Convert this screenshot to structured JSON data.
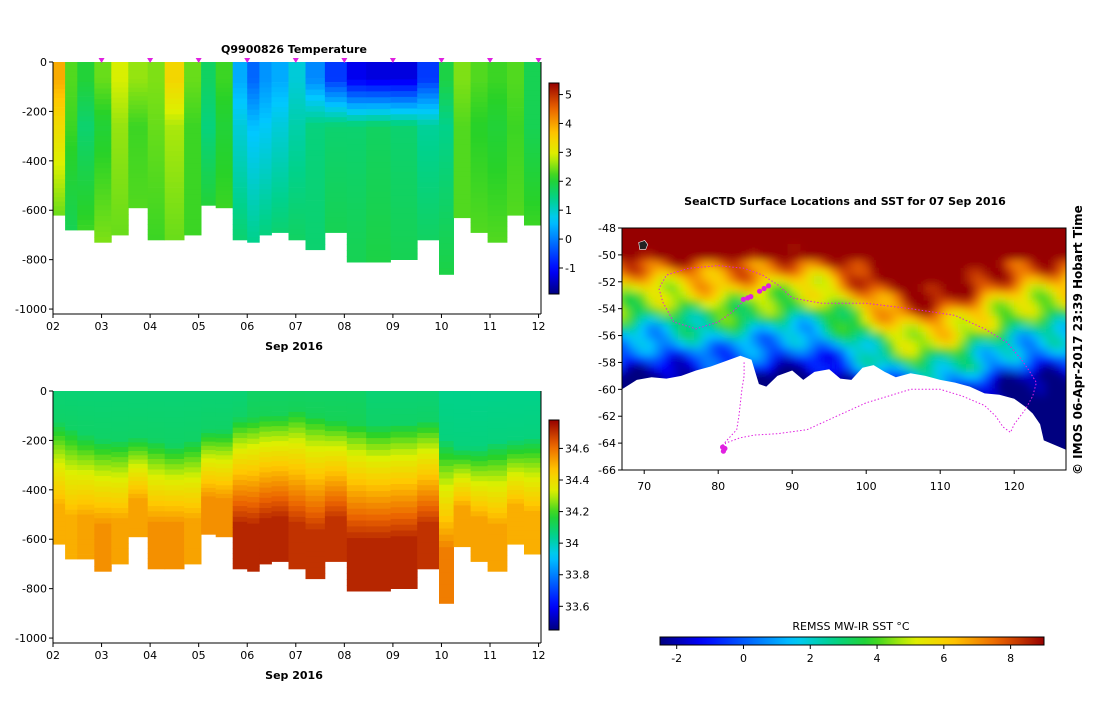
{
  "chart_data": [
    {
      "type": "heatmap",
      "title": "Q9900826  Temperature",
      "xlabel": "Sep 2016",
      "x_tick_labels": [
        "02",
        "03",
        "04",
        "05",
        "06",
        "07",
        "08",
        "09",
        "10",
        "11",
        "12"
      ],
      "x_range_days": [
        2.0,
        12.05
      ],
      "ylim": [
        -1020,
        0
      ],
      "y_ticks": [
        0,
        -200,
        -400,
        -600,
        -800,
        -1000
      ],
      "colorbar": {
        "min": -1.9,
        "max": 5.4,
        "ticks": [
          -1,
          0,
          1,
          2,
          3,
          4,
          5
        ]
      },
      "profile_marker_days": [
        3.0,
        4.0,
        5.0,
        6.0,
        7.0,
        8.0,
        9.0,
        10.0,
        11.0,
        12.0
      ],
      "profiles": [
        {
          "t": 2.0,
          "w": 0.25,
          "depth": 620,
          "surf": 3.9,
          "mix": 3.3,
          "deep": 2.4
        },
        {
          "t": 2.25,
          "w": 0.25,
          "depth": 680,
          "surf": 2.3,
          "mix": 2.2,
          "deep": 1.8
        },
        {
          "t": 2.5,
          "w": 0.35,
          "depth": 680,
          "surf": 2.0,
          "mix": 1.6,
          "deep": 2.2
        },
        {
          "t": 2.85,
          "w": 0.35,
          "depth": 730,
          "surf": 2.4,
          "mix": 2.0,
          "deep": 2.5
        },
        {
          "t": 3.2,
          "w": 0.35,
          "depth": 700,
          "surf": 2.9,
          "mix": 2.6,
          "deep": 2.4
        },
        {
          "t": 3.55,
          "w": 0.4,
          "depth": 590,
          "surf": 2.6,
          "mix": 2.2,
          "deep": 2.3
        },
        {
          "t": 3.95,
          "w": 0.35,
          "depth": 720,
          "surf": 2.5,
          "mix": 2.4,
          "deep": 2.2
        },
        {
          "t": 4.3,
          "w": 0.4,
          "depth": 720,
          "surf": 3.4,
          "mix": 2.7,
          "deep": 2.4
        },
        {
          "t": 4.7,
          "w": 0.35,
          "depth": 700,
          "surf": 2.4,
          "mix": 2.2,
          "deep": 2.2
        },
        {
          "t": 5.05,
          "w": 0.3,
          "depth": 580,
          "surf": 1.7,
          "mix": 1.5,
          "deep": 2.0
        },
        {
          "t": 5.35,
          "w": 0.35,
          "depth": 590,
          "surf": 2.2,
          "mix": 2.0,
          "deep": 2.2
        },
        {
          "t": 5.7,
          "w": 0.3,
          "depth": 720,
          "surf": 0.4,
          "mix": 0.9,
          "deep": 1.6
        },
        {
          "t": 6.0,
          "w": 0.25,
          "depth": 730,
          "surf": -0.2,
          "mix": 0.6,
          "deep": 1.4
        },
        {
          "t": 6.25,
          "w": 0.25,
          "depth": 700,
          "surf": 0.2,
          "mix": 0.7,
          "deep": 1.5
        },
        {
          "t": 6.5,
          "w": 0.35,
          "depth": 690,
          "surf": 0.4,
          "mix": 0.9,
          "deep": 1.6
        },
        {
          "t": 6.85,
          "w": 0.35,
          "depth": 720,
          "surf": 0.9,
          "mix": 1.2,
          "deep": 1.7
        },
        {
          "t": 7.2,
          "w": 0.4,
          "depth": 760,
          "surf": 0.1,
          "mix": 1.5,
          "deep": 1.6
        },
        {
          "t": 7.6,
          "w": 0.45,
          "depth": 690,
          "surf": -0.6,
          "mix": 1.6,
          "deep": 1.8
        },
        {
          "t": 8.05,
          "w": 0.4,
          "depth": 810,
          "surf": -1.2,
          "mix": 1.6,
          "deep": 1.8
        },
        {
          "t": 8.45,
          "w": 0.5,
          "depth": 810,
          "surf": -1.3,
          "mix": 1.7,
          "deep": 1.9
        },
        {
          "t": 8.95,
          "w": 0.55,
          "depth": 800,
          "surf": -1.3,
          "mix": 1.6,
          "deep": 1.8
        },
        {
          "t": 9.5,
          "w": 0.45,
          "depth": 720,
          "surf": -0.6,
          "mix": 1.3,
          "deep": 1.7
        },
        {
          "t": 9.95,
          "w": 0.3,
          "depth": 860,
          "surf": 1.9,
          "mix": 1.4,
          "deep": 1.9
        },
        {
          "t": 10.25,
          "w": 0.35,
          "depth": 630,
          "surf": 2.5,
          "mix": 2.3,
          "deep": 2.3
        },
        {
          "t": 10.6,
          "w": 0.35,
          "depth": 690,
          "surf": 2.3,
          "mix": 2.1,
          "deep": 2.3
        },
        {
          "t": 10.95,
          "w": 0.4,
          "depth": 730,
          "surf": 2.2,
          "mix": 2.0,
          "deep": 2.3
        },
        {
          "t": 11.35,
          "w": 0.35,
          "depth": 620,
          "surf": 2.3,
          "mix": 2.2,
          "deep": 2.3
        },
        {
          "t": 11.7,
          "w": 0.35,
          "depth": 660,
          "surf": 1.8,
          "mix": 1.8,
          "deep": 2.2
        }
      ]
    },
    {
      "type": "heatmap",
      "title": "",
      "xlabel": "Sep 2016",
      "x_tick_labels": [
        "02",
        "03",
        "04",
        "05",
        "06",
        "07",
        "08",
        "09",
        "10",
        "11",
        "12"
      ],
      "x_range_days": [
        2.0,
        12.05
      ],
      "ylim": [
        -1020,
        0
      ],
      "y_ticks": [
        0,
        -200,
        -400,
        -600,
        -800,
        -1000
      ],
      "colorbar": {
        "min": 33.45,
        "max": 34.78,
        "ticks": [
          33.6,
          33.8,
          34,
          34.2,
          34.4,
          34.6
        ]
      },
      "profiles": [
        {
          "t": 2.0,
          "w": 0.25,
          "depth": 620,
          "surf": 34.08,
          "deep": 34.5,
          "halo": 130
        },
        {
          "t": 2.25,
          "w": 0.25,
          "depth": 680,
          "surf": 34.08,
          "deep": 34.5,
          "halo": 150
        },
        {
          "t": 2.5,
          "w": 0.35,
          "depth": 680,
          "surf": 34.08,
          "deep": 34.52,
          "halo": 180
        },
        {
          "t": 2.85,
          "w": 0.35,
          "depth": 730,
          "surf": 34.08,
          "deep": 34.55,
          "halo": 200
        },
        {
          "t": 3.2,
          "w": 0.35,
          "depth": 700,
          "surf": 34.08,
          "deep": 34.52,
          "halo": 200
        },
        {
          "t": 3.55,
          "w": 0.4,
          "depth": 590,
          "surf": 34.08,
          "deep": 34.52,
          "halo": 190
        },
        {
          "t": 3.95,
          "w": 0.35,
          "depth": 720,
          "surf": 34.08,
          "deep": 34.55,
          "halo": 200
        },
        {
          "t": 4.3,
          "w": 0.4,
          "depth": 720,
          "surf": 34.08,
          "deep": 34.55,
          "halo": 220
        },
        {
          "t": 4.7,
          "w": 0.35,
          "depth": 700,
          "surf": 34.08,
          "deep": 34.52,
          "halo": 200
        },
        {
          "t": 5.05,
          "w": 0.3,
          "depth": 580,
          "surf": 34.08,
          "deep": 34.55,
          "halo": 160
        },
        {
          "t": 5.35,
          "w": 0.35,
          "depth": 590,
          "surf": 34.08,
          "deep": 34.55,
          "halo": 160
        },
        {
          "t": 5.7,
          "w": 0.3,
          "depth": 720,
          "surf": 34.08,
          "deep": 34.72,
          "halo": 110
        },
        {
          "t": 6.0,
          "w": 0.25,
          "depth": 730,
          "surf": 34.1,
          "deep": 34.72,
          "halo": 110
        },
        {
          "t": 6.25,
          "w": 0.25,
          "depth": 700,
          "surf": 34.1,
          "deep": 34.72,
          "halo": 100
        },
        {
          "t": 6.5,
          "w": 0.35,
          "depth": 690,
          "surf": 34.1,
          "deep": 34.72,
          "halo": 100
        },
        {
          "t": 6.85,
          "w": 0.35,
          "depth": 720,
          "surf": 34.1,
          "deep": 34.7,
          "halo": 80
        },
        {
          "t": 7.2,
          "w": 0.4,
          "depth": 760,
          "surf": 34.1,
          "deep": 34.7,
          "halo": 100
        },
        {
          "t": 7.6,
          "w": 0.45,
          "depth": 690,
          "surf": 34.1,
          "deep": 34.7,
          "halo": 120
        },
        {
          "t": 8.05,
          "w": 0.4,
          "depth": 810,
          "surf": 34.1,
          "deep": 34.72,
          "halo": 130
        },
        {
          "t": 8.45,
          "w": 0.5,
          "depth": 810,
          "surf": 34.08,
          "deep": 34.72,
          "halo": 140
        },
        {
          "t": 8.95,
          "w": 0.55,
          "depth": 800,
          "surf": 34.08,
          "deep": 34.72,
          "halo": 130
        },
        {
          "t": 9.5,
          "w": 0.45,
          "depth": 720,
          "surf": 34.08,
          "deep": 34.7,
          "halo": 120
        },
        {
          "t": 9.95,
          "w": 0.3,
          "depth": 860,
          "surf": 34.05,
          "deep": 34.58,
          "halo": 200
        },
        {
          "t": 10.25,
          "w": 0.35,
          "depth": 630,
          "surf": 34.05,
          "deep": 34.52,
          "halo": 230
        },
        {
          "t": 10.6,
          "w": 0.35,
          "depth": 690,
          "surf": 34.05,
          "deep": 34.52,
          "halo": 230
        },
        {
          "t": 10.95,
          "w": 0.4,
          "depth": 730,
          "surf": 34.05,
          "deep": 34.52,
          "halo": 210
        },
        {
          "t": 11.35,
          "w": 0.35,
          "depth": 620,
          "surf": 34.05,
          "deep": 34.5,
          "halo": 200
        },
        {
          "t": 11.7,
          "w": 0.35,
          "depth": 660,
          "surf": 34.05,
          "deep": 34.5,
          "halo": 190
        }
      ]
    },
    {
      "type": "heatmap",
      "title": "SealCTD Surface Locations and SST for 07 Sep 2016",
      "xlim": [
        67,
        127
      ],
      "ylim": [
        -66,
        -48
      ],
      "x_ticks": [
        70,
        80,
        90,
        100,
        110,
        120
      ],
      "y_ticks": [
        -48,
        -50,
        -52,
        -54,
        -56,
        -58,
        -60,
        -62,
        -64,
        -66
      ],
      "colorbar": {
        "label": "REMSS MW-IR SST °C",
        "min": -2.5,
        "max": 9,
        "ticks": [
          -2,
          0,
          2,
          4,
          6,
          8
        ]
      },
      "track_lonlat": [
        [
          83.5,
          -53.4
        ],
        [
          82,
          -54.2
        ],
        [
          80,
          -55
        ],
        [
          77,
          -55.5
        ],
        [
          74,
          -55
        ],
        [
          72.5,
          -53.5
        ],
        [
          72,
          -52.5
        ],
        [
          73,
          -51.5
        ],
        [
          76,
          -51
        ],
        [
          80,
          -50.8
        ],
        [
          83.5,
          -51
        ],
        [
          86,
          -51.5
        ],
        [
          88,
          -52.2
        ],
        [
          90,
          -53.2
        ],
        [
          94,
          -53.6
        ],
        [
          100,
          -53.6
        ],
        [
          106,
          -54
        ],
        [
          112,
          -54.5
        ],
        [
          116,
          -55.5
        ],
        [
          119,
          -56.5
        ],
        [
          121,
          -57.8
        ],
        [
          122,
          -58.6
        ],
        [
          123,
          -59.5
        ],
        [
          122.5,
          -60.5
        ],
        [
          121.5,
          -61.5
        ],
        [
          120,
          -62.6
        ],
        [
          119.5,
          -63.2
        ],
        [
          118.5,
          -62.8
        ],
        [
          117.5,
          -62
        ],
        [
          116,
          -61.2
        ],
        [
          113,
          -60.5
        ],
        [
          110,
          -60
        ],
        [
          106,
          -60
        ],
        [
          103,
          -60.5
        ],
        [
          100,
          -61
        ],
        [
          96,
          -62
        ],
        [
          92,
          -63
        ],
        [
          88,
          -63.3
        ],
        [
          85,
          -63.4
        ],
        [
          83,
          -63.6
        ],
        [
          81,
          -64
        ],
        [
          80.8,
          -64.4
        ]
      ],
      "track2_lonlat": [
        [
          83.5,
          -58
        ],
        [
          83.5,
          -59
        ],
        [
          83.2,
          -60
        ],
        [
          83,
          -61
        ],
        [
          82.8,
          -62
        ],
        [
          82.5,
          -63
        ],
        [
          81.5,
          -63.6
        ],
        [
          80.5,
          -64.2
        ]
      ],
      "surface_locations_lonlat": [
        [
          83.4,
          -53.3
        ],
        [
          84,
          -53.2
        ],
        [
          84.4,
          -53.1
        ],
        [
          85.6,
          -52.7
        ],
        [
          86.2,
          -52.5
        ],
        [
          86.8,
          -52.3
        ],
        [
          80.6,
          -64.3
        ],
        [
          80.9,
          -64.4
        ],
        [
          80.7,
          -64.6
        ]
      ],
      "copyright_text": "© IMOS 06-Apr-2017 23:39 Hobart Time"
    }
  ]
}
